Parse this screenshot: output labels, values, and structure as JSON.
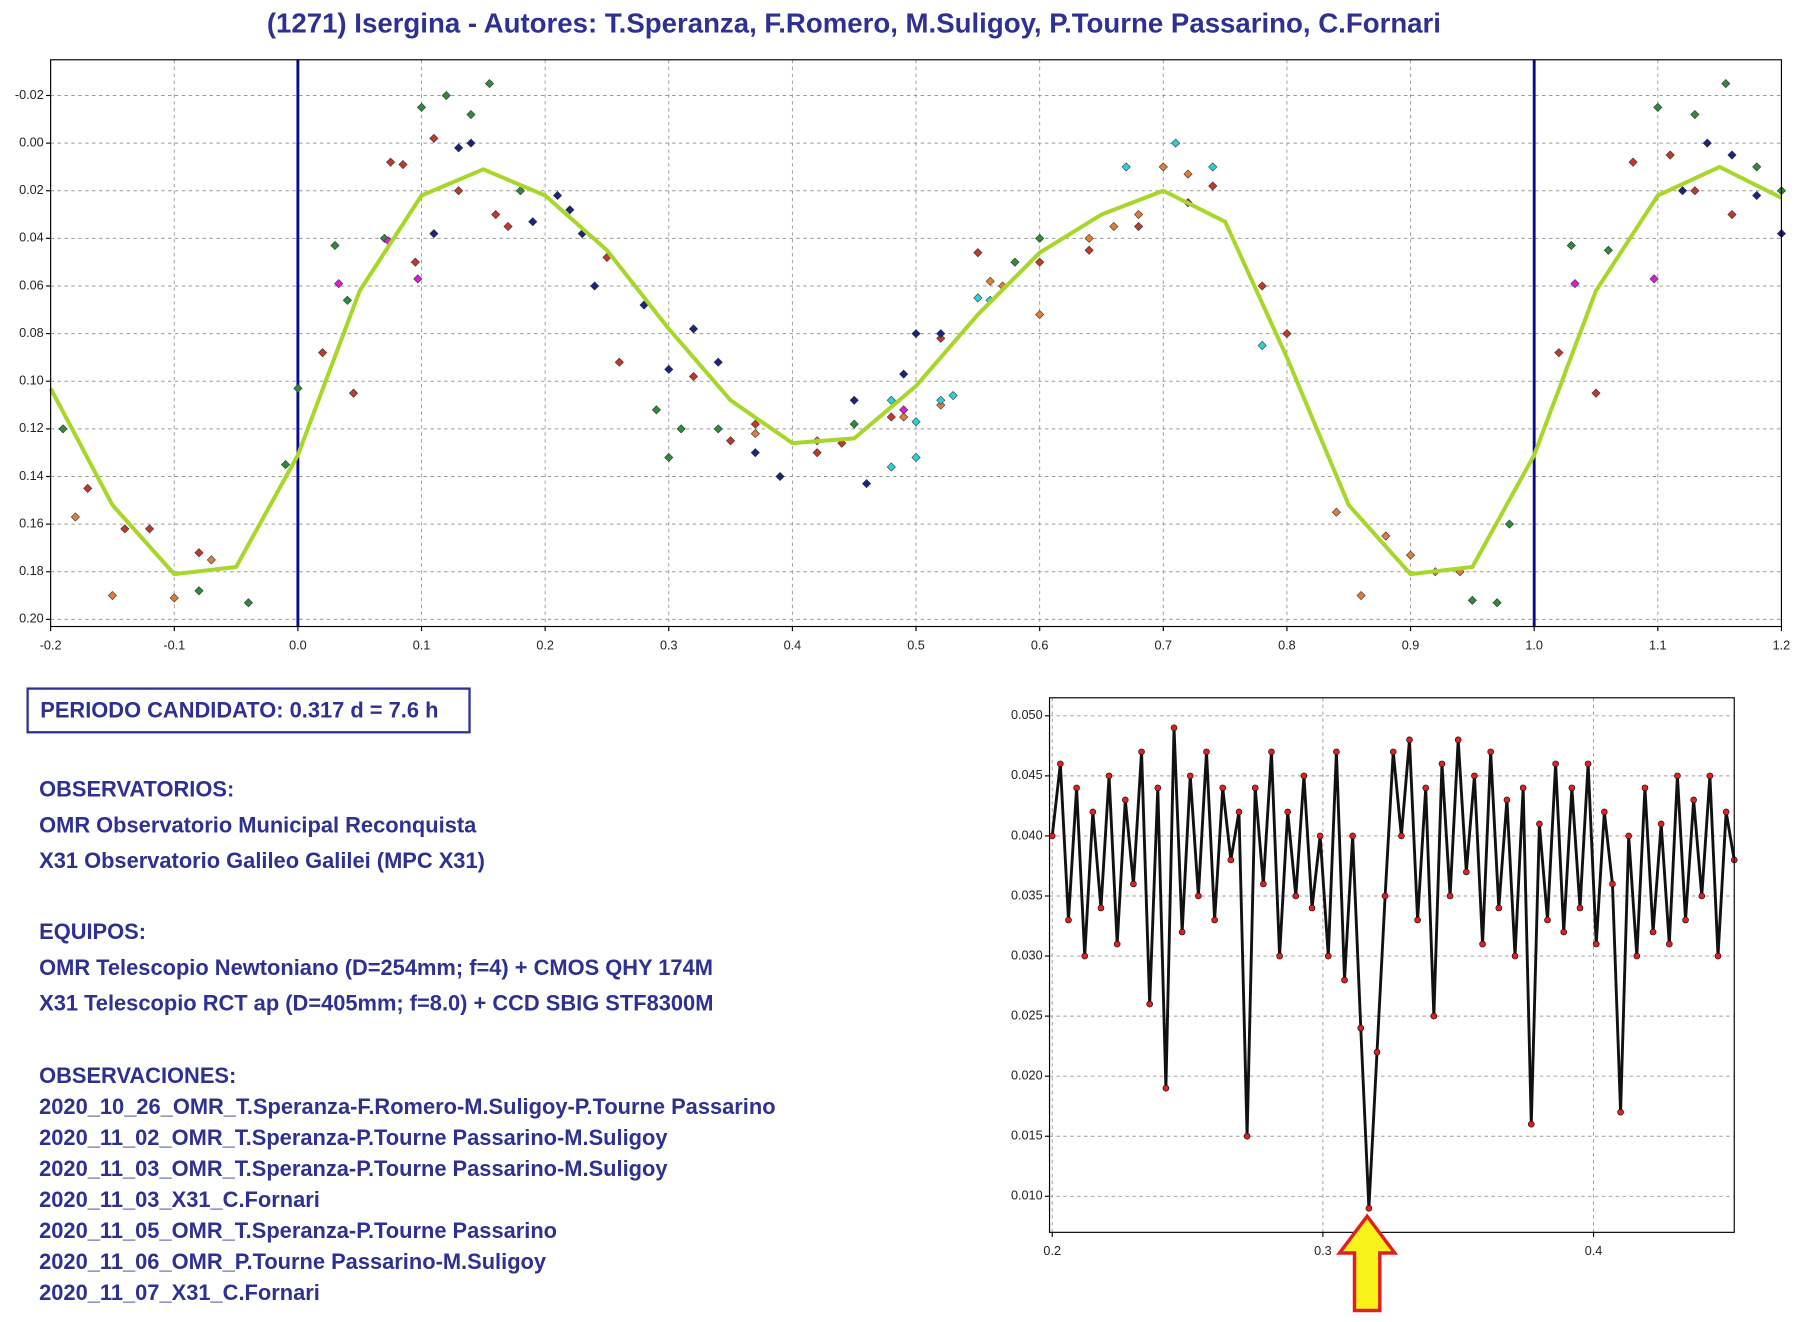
{
  "chart_data": [
    {
      "type": "scatter",
      "title": "(1271) Isergina - Autores: T.Speranza, F.Romero, M.Suligoy, P.Tourne Passarino, C.Fornari",
      "xlim": [
        -0.2,
        1.2
      ],
      "ylim": [
        -0.035,
        0.203
      ],
      "y_inverted": true,
      "grid": true,
      "xticks": [
        -0.2,
        -0.1,
        {
          "value": 0,
          "label": "0.0"
        },
        0.1,
        0.2,
        0.3,
        0.4,
        0.5,
        0.6,
        0.7,
        0.8,
        0.9,
        {
          "value": 1,
          "label": "1.0"
        },
        1.1,
        1.2
      ],
      "yticks": [
        -0.02,
        {
          "value": 0,
          "label": "0.00"
        },
        0.02,
        0.04,
        0.06,
        0.08,
        {
          "value": 0.1,
          "label": "0.10"
        },
        0.12,
        0.14,
        0.16,
        0.18,
        {
          "value": 0.2,
          "label": "0.20"
        }
      ],
      "vlines": {
        "color": "#0a0a8c",
        "x": [
          0,
          1
        ]
      },
      "series": [
        {
          "color": "#c0392b",
          "x": [
            0.02,
            0.045,
            0.075,
            0.085,
            0.095,
            0.11,
            0.13,
            0.16,
            0.17,
            0.25,
            0.26,
            0.32,
            0.35,
            0.37,
            0.42,
            0.44,
            0.48,
            0.52,
            0.55,
            0.6,
            0.64,
            0.68,
            0.72,
            0.74,
            0.78,
            0.8,
            -0.17,
            -0.14,
            -0.12,
            -0.08,
            1.02,
            1.05,
            1.08,
            1.11,
            1.13,
            1.16
          ],
          "values": [
            0.088,
            0.105,
            0.008,
            0.009,
            0.05,
            -0.002,
            0.02,
            0.03,
            0.035,
            0.048,
            0.092,
            0.098,
            0.125,
            0.118,
            0.13,
            0.126,
            0.115,
            0.082,
            0.046,
            0.05,
            0.045,
            0.035,
            0.025,
            0.018,
            0.06,
            0.08,
            0.145,
            0.162,
            0.162,
            0.172,
            0.088,
            0.105,
            0.008,
            0.005,
            0.02,
            0.03
          ]
        },
        {
          "color": "#e07b39",
          "x": [
            -0.18,
            -0.15,
            -0.1,
            -0.07,
            0.37,
            0.42,
            0.57,
            0.6,
            0.64,
            0.66,
            0.68,
            0.7,
            0.72,
            0.84,
            0.86,
            0.88,
            0.9,
            0.92,
            0.94,
            0.56,
            0.49,
            0.52
          ],
          "values": [
            0.157,
            0.19,
            0.191,
            0.175,
            0.122,
            0.125,
            0.06,
            0.072,
            0.04,
            0.035,
            0.03,
            0.01,
            0.013,
            0.155,
            0.19,
            0.165,
            0.173,
            0.18,
            0.18,
            0.058,
            0.115,
            0.11
          ]
        },
        {
          "color": "#2e8b3a",
          "x": [
            0.0,
            -0.01,
            -0.04,
            -0.08,
            0.03,
            0.04,
            0.07,
            0.1,
            0.12,
            0.14,
            0.155,
            0.18,
            0.3,
            0.31,
            0.29,
            0.34,
            0.45,
            0.58,
            0.6,
            0.95,
            0.97,
            0.98,
            1.03,
            1.06,
            1.1,
            1.13,
            1.155,
            1.18,
            1.2,
            -0.19
          ],
          "values": [
            0.103,
            0.135,
            0.193,
            0.188,
            0.043,
            0.066,
            0.04,
            -0.015,
            -0.02,
            -0.012,
            -0.025,
            0.02,
            0.132,
            0.12,
            0.112,
            0.12,
            0.118,
            0.05,
            0.04,
            0.192,
            0.193,
            0.16,
            0.043,
            0.045,
            -0.015,
            -0.012,
            -0.025,
            0.01,
            0.02,
            0.12
          ]
        },
        {
          "color": "#1a237e",
          "x": [
            0.11,
            0.13,
            0.14,
            0.21,
            0.22,
            0.23,
            0.28,
            0.3,
            0.32,
            0.34,
            0.37,
            0.39,
            0.45,
            0.46,
            0.49,
            0.5,
            0.52,
            0.24,
            1.12,
            1.14,
            1.16,
            1.18,
            1.2,
            0.19
          ],
          "values": [
            0.038,
            0.002,
            0.0,
            0.022,
            0.028,
            0.038,
            0.068,
            0.095,
            0.078,
            0.092,
            0.13,
            0.14,
            0.108,
            0.143,
            0.097,
            0.08,
            0.08,
            0.06,
            0.02,
            0.0,
            0.005,
            0.022,
            0.038,
            0.033
          ]
        },
        {
          "color": "#d61ed6",
          "x": [
            0.033,
            0.073,
            0.097,
            1.033,
            1.097,
            0.49
          ],
          "values": [
            0.059,
            0.041,
            0.057,
            0.059,
            0.057,
            0.112
          ]
        },
        {
          "color": "#2bd1d6",
          "x": [
            0.48,
            0.5,
            0.52,
            0.53,
            0.55,
            0.56,
            0.67,
            0.71,
            0.74,
            0.78,
            0.5,
            0.48
          ],
          "values": [
            0.108,
            0.117,
            0.108,
            0.106,
            0.065,
            0.066,
            0.01,
            0.0,
            0.01,
            0.085,
            0.132,
            0.136
          ]
        }
      ],
      "fit": {
        "color": "#a8d62a",
        "x": [
          -0.2,
          -0.15,
          -0.1,
          -0.05,
          0.0,
          0.05,
          0.1,
          0.15,
          0.2,
          0.25,
          0.3,
          0.35,
          0.4,
          0.45,
          0.5,
          0.55,
          0.6,
          0.65,
          0.7,
          0.75,
          0.8,
          0.85,
          0.9,
          0.95,
          1.0,
          1.05,
          1.1,
          1.15,
          1.2
        ],
        "values": [
          0.103,
          0.152,
          0.181,
          0.178,
          0.131,
          0.062,
          0.022,
          0.011,
          0.022,
          0.045,
          0.078,
          0.108,
          0.126,
          0.124,
          0.102,
          0.072,
          0.046,
          0.03,
          0.02,
          0.033,
          0.09,
          0.152,
          0.181,
          0.178,
          0.131,
          0.062,
          0.022,
          0.01,
          0.023
        ]
      }
    },
    {
      "type": "line",
      "xlim": [
        0.199,
        0.452
      ],
      "ylim": [
        0.007,
        0.0515
      ],
      "grid": true,
      "color": "#111111",
      "marker_color": "#e02020",
      "xticks": [
        0.2,
        0.3,
        0.4
      ],
      "yticks": [
        {
          "value": 0.01,
          "label": "0.010"
        },
        0.015,
        {
          "value": 0.02,
          "label": "0.020"
        },
        0.025,
        {
          "value": 0.03,
          "label": "0.030"
        },
        0.035,
        {
          "value": 0.04,
          "label": "0.040"
        },
        0.045,
        {
          "value": 0.05,
          "label": "0.050"
        }
      ],
      "x": [
        0.2,
        0.203,
        0.206,
        0.209,
        0.212,
        0.215,
        0.218,
        0.221,
        0.224,
        0.227,
        0.23,
        0.233,
        0.236,
        0.239,
        0.242,
        0.245,
        0.248,
        0.251,
        0.254,
        0.257,
        0.26,
        0.263,
        0.266,
        0.269,
        0.272,
        0.275,
        0.278,
        0.281,
        0.284,
        0.287,
        0.29,
        0.293,
        0.296,
        0.299,
        0.302,
        0.305,
        0.308,
        0.311,
        0.314,
        0.317,
        0.32,
        0.323,
        0.326,
        0.329,
        0.332,
        0.335,
        0.338,
        0.341,
        0.344,
        0.347,
        0.35,
        0.353,
        0.356,
        0.359,
        0.362,
        0.365,
        0.368,
        0.371,
        0.374,
        0.377,
        0.38,
        0.383,
        0.386,
        0.389,
        0.392,
        0.395,
        0.398,
        0.401,
        0.404,
        0.407,
        0.41,
        0.413,
        0.416,
        0.419,
        0.422,
        0.425,
        0.428,
        0.431,
        0.434,
        0.437,
        0.44,
        0.443,
        0.446,
        0.449,
        0.452
      ],
      "values": [
        0.04,
        0.046,
        0.033,
        0.044,
        0.03,
        0.042,
        0.034,
        0.045,
        0.031,
        0.043,
        0.036,
        0.047,
        0.026,
        0.044,
        0.019,
        0.049,
        0.032,
        0.045,
        0.035,
        0.047,
        0.033,
        0.044,
        0.038,
        0.042,
        0.015,
        0.044,
        0.036,
        0.047,
        0.03,
        0.042,
        0.035,
        0.045,
        0.034,
        0.04,
        0.03,
        0.047,
        0.028,
        0.04,
        0.024,
        0.009,
        0.022,
        0.035,
        0.047,
        0.04,
        0.048,
        0.033,
        0.044,
        0.025,
        0.046,
        0.035,
        0.048,
        0.037,
        0.045,
        0.031,
        0.047,
        0.034,
        0.043,
        0.03,
        0.044,
        0.016,
        0.041,
        0.033,
        0.046,
        0.032,
        0.044,
        0.034,
        0.046,
        0.031,
        0.042,
        0.036,
        0.017,
        0.04,
        0.03,
        0.044,
        0.032,
        0.041,
        0.031,
        0.045,
        0.033,
        0.043,
        0.035,
        0.045,
        0.03,
        0.042,
        0.038
      ]
    }
  ],
  "info": {
    "period": "PERIODO CANDIDATO: 0.317 d = 7.6 h",
    "sections": [
      {
        "heading": "OBSERVATORIOS:",
        "lines": [
          "OMR Observatorio Municipal Reconquista",
          "X31 Observatorio Galileo Galilei (MPC X31)"
        ]
      },
      {
        "heading": "EQUIPOS:",
        "lines": [
          "OMR Telescopio Newtoniano (D=254mm; f=4) + CMOS QHY 174M",
          "X31 Telescopio RCT ap (D=405mm; f=8.0) + CCD SBIG STF8300M"
        ]
      },
      {
        "heading": "OBSERVACIONES:",
        "lines": [
          "2020_10_26_OMR_T.Speranza-F.Romero-M.Suligoy-P.Tourne Passarino",
          "2020_11_02_OMR_T.Speranza-P.Tourne Passarino-M.Suligoy",
          "2020_11_03_OMR_T.Speranza-P.Tourne Passarino-M.Suligoy",
          "2020_11_03_X31_C.Fornari",
          "2020_11_05_OMR_T.Speranza-P.Tourne Passarino",
          "2020_11_06_OMR_P.Tourne Passarino-M.Suligoy",
          "2020_11_07_X31_C.Fornari"
        ]
      }
    ]
  }
}
